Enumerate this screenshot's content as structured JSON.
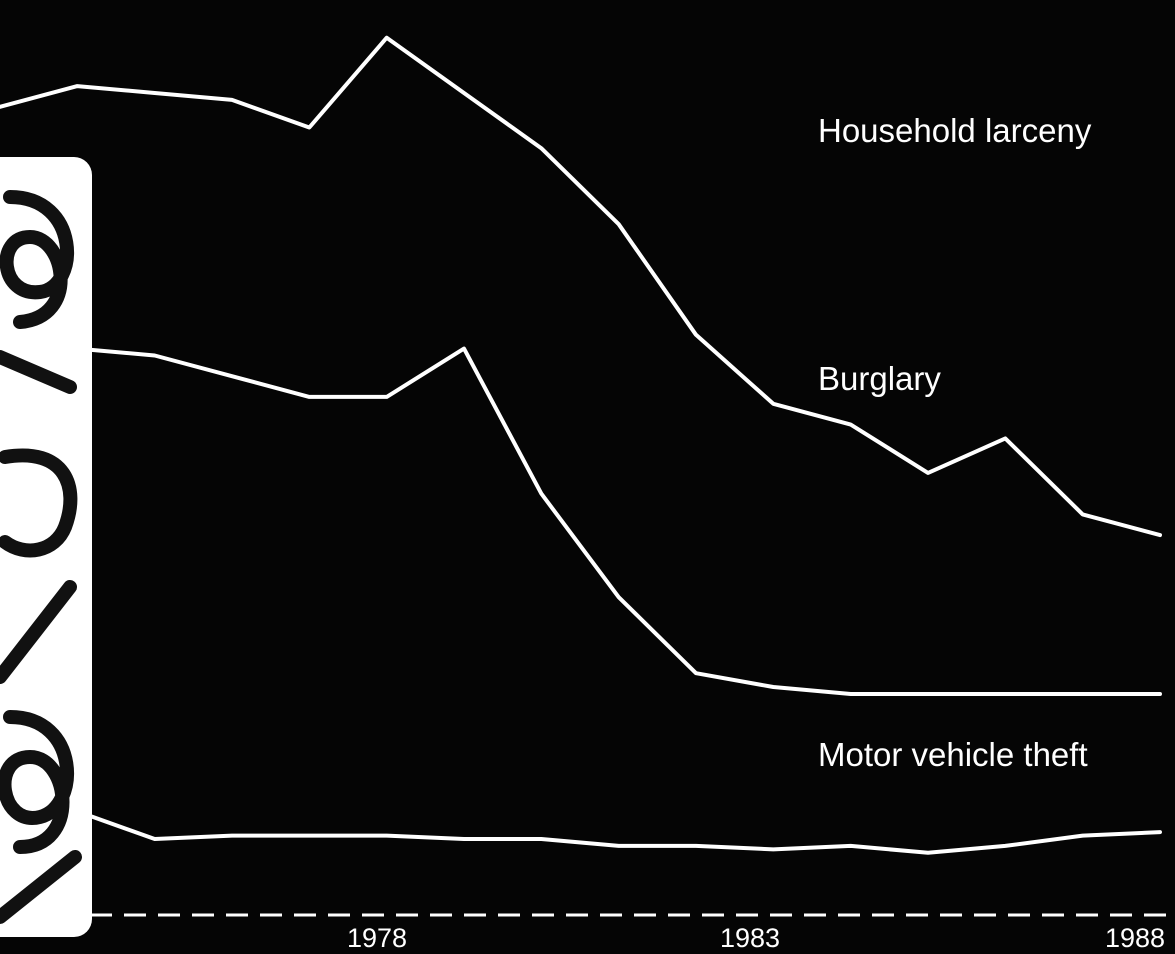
{
  "chart_data": {
    "type": "line",
    "x": [
      1973,
      1974,
      1975,
      1976,
      1977,
      1978,
      1979,
      1980,
      1981,
      1982,
      1983,
      1984,
      1985,
      1986,
      1987,
      1988
    ],
    "series": [
      {
        "name": "Household larceny",
        "values": [
          11.7,
          12.0,
          11.9,
          11.8,
          11.4,
          12.7,
          11.9,
          11.1,
          10.0,
          8.4,
          7.4,
          7.1,
          6.4,
          6.9,
          5.8,
          5.5
        ]
      },
      {
        "name": "Burglary",
        "values": [
          8.6,
          8.2,
          8.1,
          7.8,
          7.5,
          7.5,
          8.2,
          6.1,
          4.6,
          3.5,
          3.3,
          3.2,
          3.2,
          3.2,
          3.2,
          3.2
        ]
      },
      {
        "name": "Motor vehicle theft",
        "values": [
          1.4,
          1.5,
          1.1,
          1.15,
          1.15,
          1.15,
          1.1,
          1.1,
          1.0,
          1.0,
          0.95,
          1.0,
          0.9,
          1.0,
          1.15,
          1.2
        ]
      }
    ],
    "ticks": [
      "1978",
      "1983",
      "1988"
    ],
    "ylim": [
      0,
      13
    ],
    "grid": false,
    "legend": "series labels placed at right above each line",
    "colors": {
      "background": "#050505",
      "line": "#ffffff"
    }
  },
  "stamp": {
    "text": "181378",
    "kind": "handwritten number on white sticker"
  }
}
